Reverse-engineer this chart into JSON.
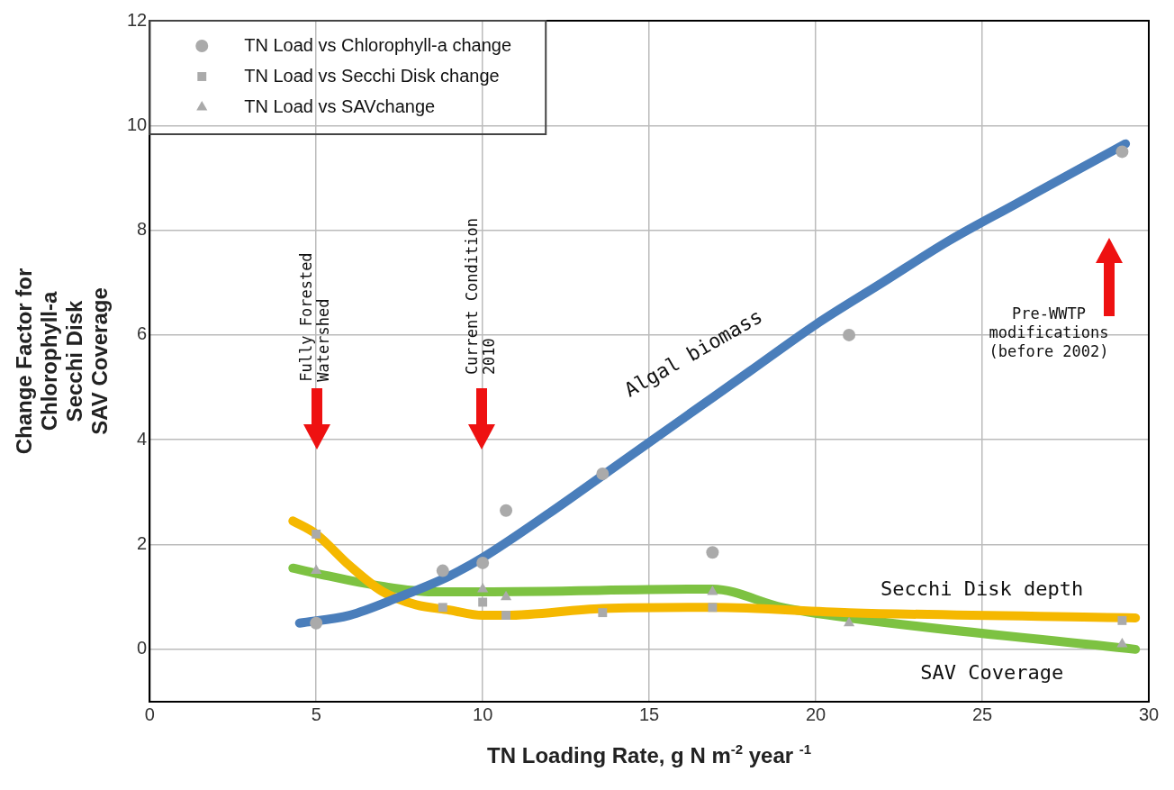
{
  "chart_data": {
    "type": "scatter",
    "xlabel": "TN Loading Rate, g N m$^{-2}$ year $^{-1}$",
    "ylabel": "Change Factor for\nChlorophyll-a\nSecchi Disk\nSAV Coverage",
    "xlim": [
      0,
      30
    ],
    "xticks": [
      0,
      5,
      10,
      15,
      20,
      25,
      30
    ],
    "ylim": [
      -1,
      12
    ],
    "yticks": [
      0,
      2,
      4,
      6,
      8,
      10,
      12
    ],
    "grid": true,
    "legend": "top left",
    "series": [
      {
        "name": "TN Load vs Chlorophyll-a change",
        "marker": "circle",
        "color": "#aaaaaa",
        "x": [
          5,
          8.8,
          10,
          10.7,
          13.6,
          16.9,
          21,
          29.2
        ],
        "values": [
          0.5,
          1.5,
          1.65,
          2.65,
          3.35,
          1.85,
          6.0,
          9.5
        ]
      },
      {
        "name": "TN Load vs Secchi Disk change",
        "marker": "square",
        "color": "#aaaaaa",
        "x": [
          5,
          8.8,
          10,
          10.7,
          13.6,
          16.9,
          29.2
        ],
        "values": [
          2.2,
          0.8,
          0.9,
          0.65,
          0.7,
          0.8,
          0.55
        ]
      },
      {
        "name": "TN Load vs SAVchange",
        "marker": "triangle",
        "color": "#aaaaaa",
        "x": [
          5,
          10,
          10.7,
          16.9,
          21,
          29.2
        ],
        "values": [
          1.5,
          1.15,
          1.0,
          1.1,
          0.5,
          0.1
        ]
      },
      {
        "type": "line",
        "marker": "none",
        "color": "#4a7ebb",
        "x": [
          4.5,
          6,
          7.5,
          9,
          10,
          12,
          14,
          16,
          18,
          20,
          22,
          24,
          26,
          28,
          29.3
        ],
        "values": [
          0.5,
          0.65,
          1.0,
          1.4,
          1.75,
          2.6,
          3.5,
          4.4,
          5.3,
          6.2,
          7.0,
          7.8,
          8.5,
          9.2,
          9.65
        ]
      },
      {
        "type": "line",
        "marker": "none",
        "color": "#f5b800",
        "x": [
          4.3,
          5,
          6,
          7,
          8,
          9,
          10,
          10.7,
          13.6,
          16.9,
          21,
          29.6
        ],
        "values": [
          2.45,
          2.2,
          1.6,
          1.1,
          0.85,
          0.75,
          0.65,
          0.65,
          0.78,
          0.8,
          0.7,
          0.6
        ]
      },
      {
        "type": "line",
        "marker": "none",
        "color": "#7dc242",
        "x": [
          4.3,
          5,
          7,
          8.5,
          10,
          16.9,
          19,
          21,
          29.6
        ],
        "values": [
          1.55,
          1.45,
          1.2,
          1.1,
          1.1,
          1.15,
          0.8,
          0.6,
          0.0
        ]
      }
    ],
    "annotations": [
      "Fully Forested\nWatershed",
      "Current Condition\n2010",
      "Pre-WWTP\nmodifications\n(before 2002)",
      "Algal biomass",
      "Secchi Disk depth",
      "SAV Coverage"
    ]
  }
}
